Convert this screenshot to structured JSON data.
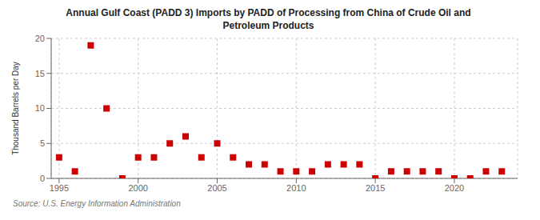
{
  "chart_data": {
    "type": "scatter",
    "title": "Annual Gulf Coast (PADD 3) Imports by PADD of Processing from China of Crude Oil and\nPetroleum Products",
    "ylabel": "Thousand Barrels per Day",
    "annotations": [
      "Source: U.S. Energy Information Administration"
    ],
    "x": [
      1995,
      1996,
      1997,
      1998,
      1999,
      2000,
      2001,
      2002,
      2003,
      2004,
      2005,
      2006,
      2007,
      2008,
      2009,
      2010,
      2011,
      2012,
      2013,
      2014,
      2015,
      2016,
      2017,
      2018,
      2019,
      2020,
      2021,
      2022,
      2023
    ],
    "values": [
      3,
      1,
      19,
      10,
      0,
      3,
      3,
      5,
      6,
      3,
      5,
      3,
      2,
      2,
      1,
      1,
      1,
      2,
      2,
      2,
      0,
      1,
      1,
      1,
      1,
      0,
      0,
      1,
      1
    ],
    "color": "#cc0000",
    "marker": "square",
    "xlim": [
      1994.5,
      2024
    ],
    "xticks": [
      1995,
      2000,
      2005,
      2010,
      2015,
      2020
    ],
    "ylim": [
      0,
      20
    ],
    "yticks": [
      0,
      5,
      10,
      15,
      20
    ],
    "grid": true
  }
}
